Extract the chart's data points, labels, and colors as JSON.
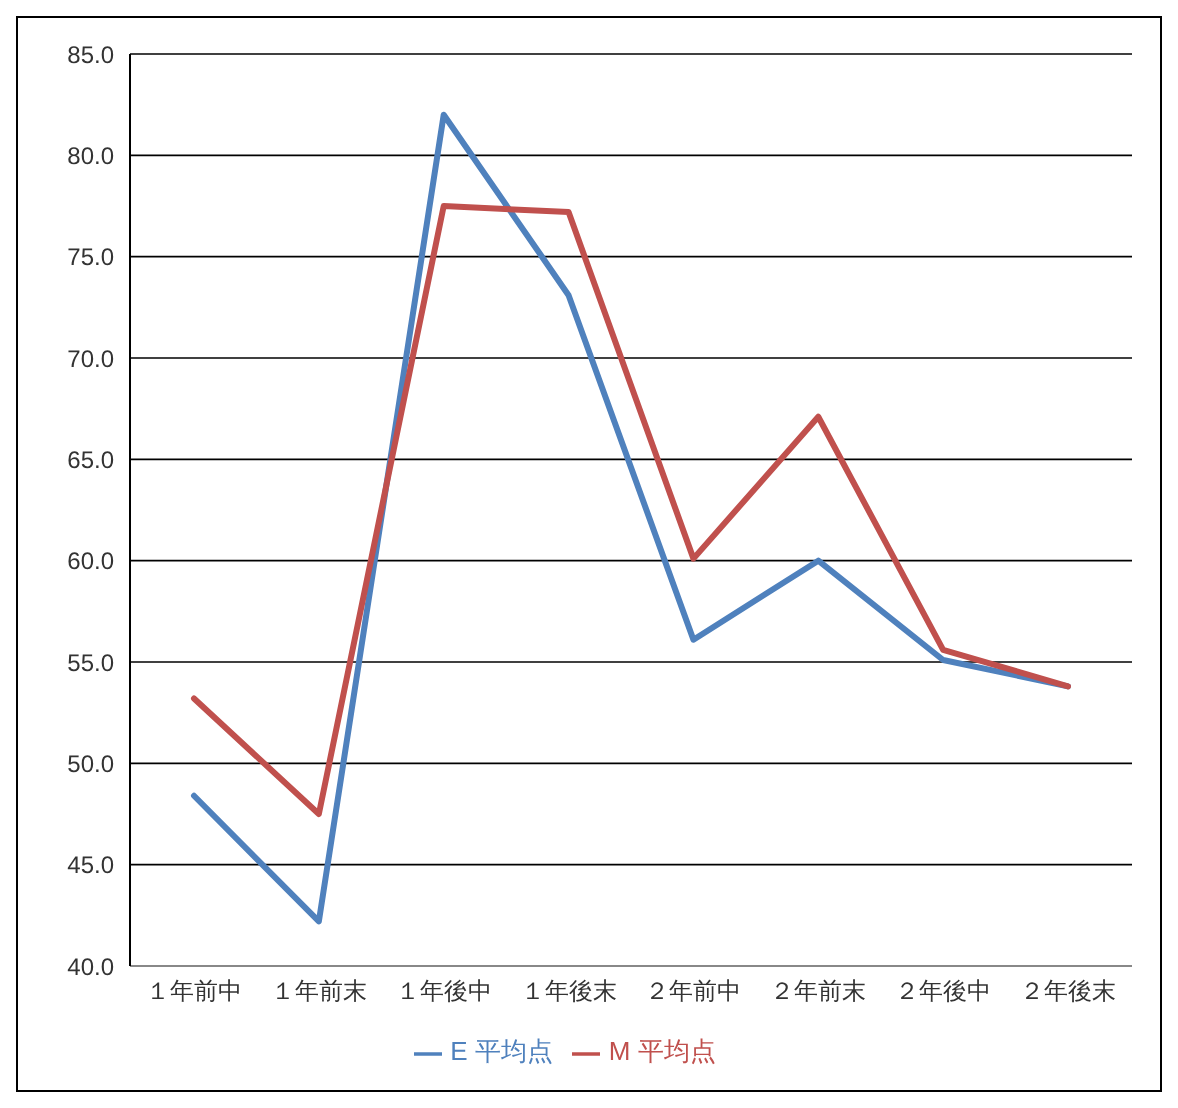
{
  "chart_data": {
    "type": "line",
    "categories": [
      "１年前中",
      "１年前末",
      "１年後中",
      "１年後末",
      "２年前中",
      "２年前末",
      "２年後中",
      "２年後末"
    ],
    "series": [
      {
        "name": "E 平均点",
        "color": "#4f81bd",
        "values": [
          48.4,
          42.2,
          82.0,
          73.1,
          56.1,
          60.0,
          55.1,
          53.8
        ]
      },
      {
        "name": "M 平均点",
        "color": "#c0504d",
        "values": [
          53.2,
          47.5,
          77.5,
          77.2,
          60.1,
          67.1,
          55.6,
          53.8
        ]
      }
    ],
    "ylim": [
      40,
      85
    ],
    "yticks": [
      {
        "value": 40,
        "label": "40.0"
      },
      {
        "value": 45,
        "label": "45.0"
      },
      {
        "value": 50,
        "label": "50.0"
      },
      {
        "value": 55,
        "label": "55.0"
      },
      {
        "value": 60,
        "label": "60.0"
      },
      {
        "value": 65,
        "label": "65.0"
      },
      {
        "value": 70,
        "label": "70.0"
      },
      {
        "value": 75,
        "label": "75.0"
      },
      {
        "value": 80,
        "label": "80.0"
      },
      {
        "value": 85,
        "label": "85.0"
      }
    ],
    "grid": "y",
    "legend": "bottom",
    "marker": "none",
    "line_style": "solid"
  }
}
